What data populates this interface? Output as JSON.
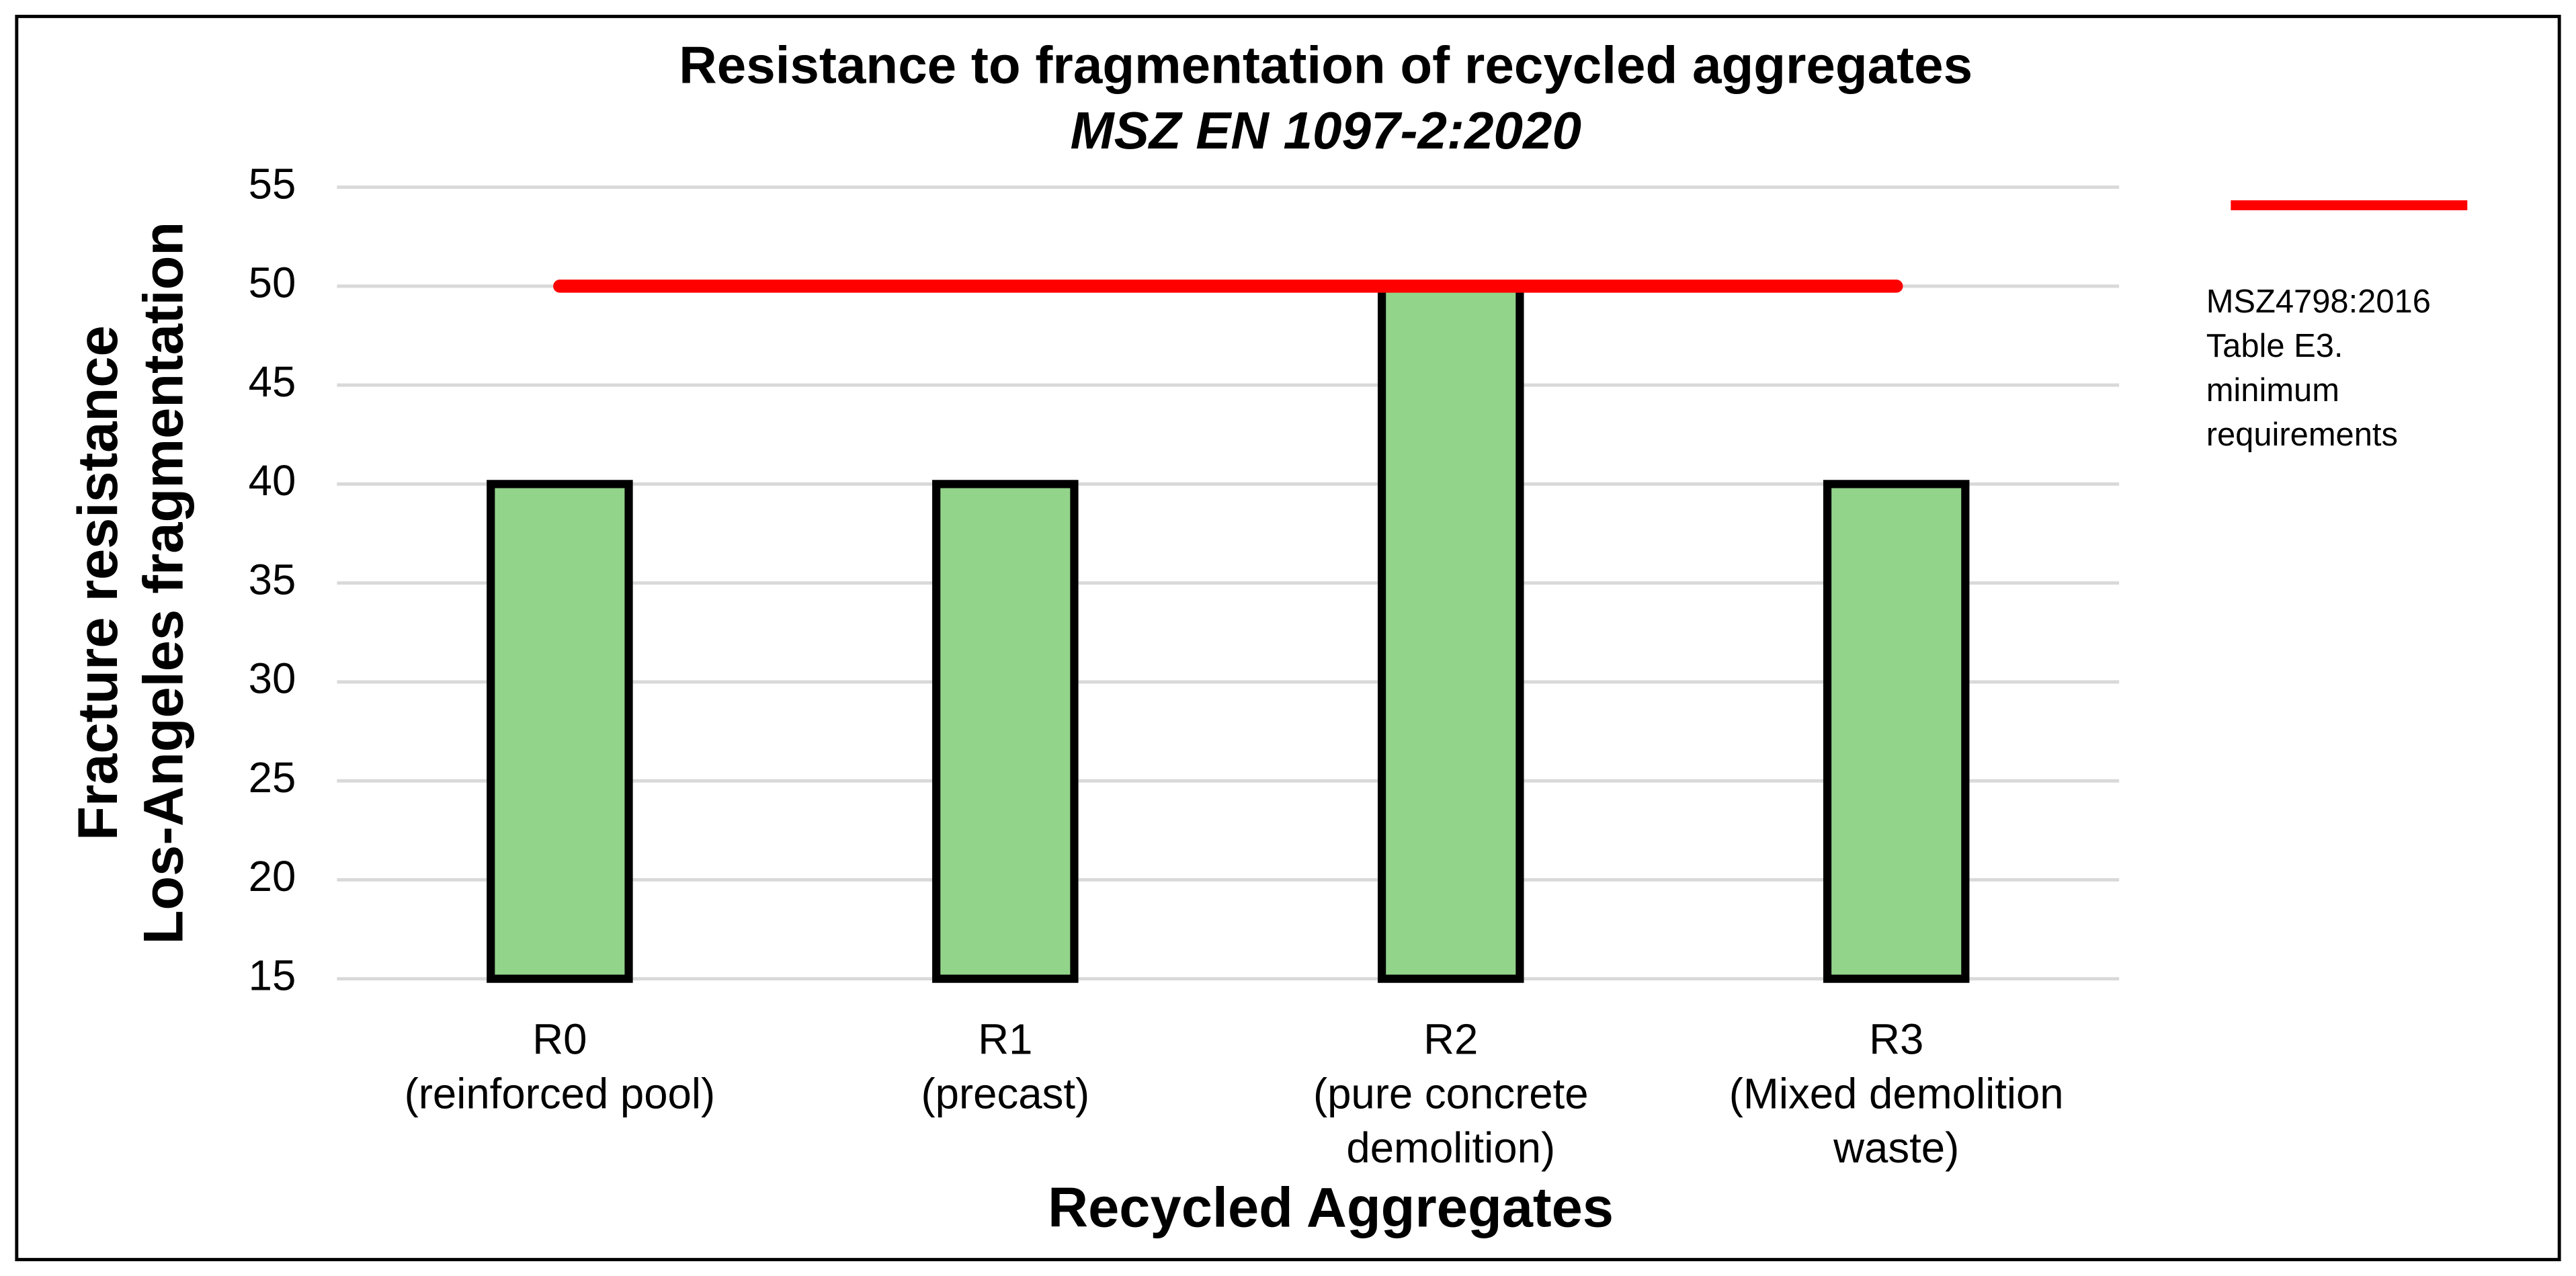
{
  "chart_data": {
    "type": "bar",
    "title": "Resistance to fragmentation of recycled aggregates",
    "subtitle": "MSZ EN 1097-2:2020",
    "y_label": [
      "Fracture resistance",
      "Los-Angeles fragmentation"
    ],
    "x_label": "Recycled Aggregates",
    "categories": [
      [
        "R0",
        "(reinforced pool)"
      ],
      [
        "R1",
        "(precast)"
      ],
      [
        "R2",
        "(pure concrete",
        "demolition)"
      ],
      [
        "R3",
        "(Mixed demolition",
        "waste)"
      ]
    ],
    "values": [
      40,
      40,
      50,
      40
    ],
    "color": "#93d48b",
    "series": [
      {
        "name": [
          "MSZ4798:2016",
          "Table E3.",
          "minimum",
          "requirements"
        ],
        "color": "#ff0000",
        "values": [
          50,
          50,
          50,
          50
        ]
      }
    ],
    "ylim": [
      15,
      55
    ],
    "yticks": [
      15,
      20,
      25,
      30,
      35,
      40,
      45,
      50,
      55
    ],
    "grid": true
  }
}
